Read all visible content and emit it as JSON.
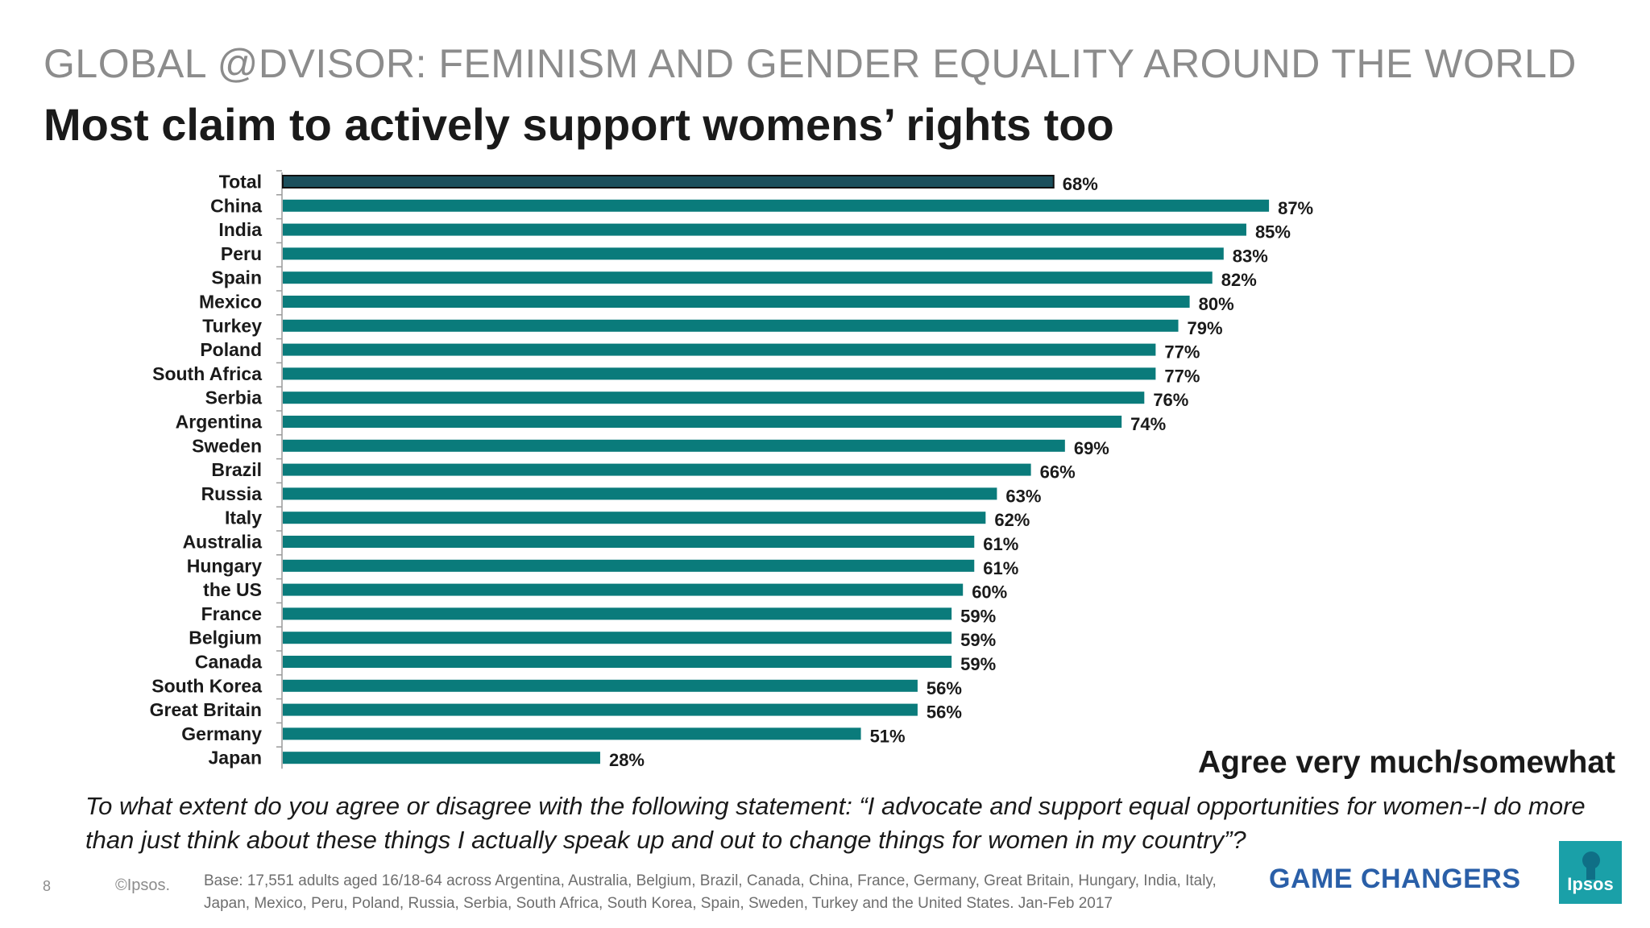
{
  "header": {
    "supertitle": "GLOBAL @DVISOR: FEMINISM AND GENDER EQUALITY AROUND THE WORLD",
    "title": "Most claim to actively support womens’ rights too"
  },
  "chart_data": {
    "type": "bar",
    "orientation": "horizontal",
    "categories": [
      "Total",
      "China",
      "India",
      "Peru",
      "Spain",
      "Mexico",
      "Turkey",
      "Poland",
      "South Africa",
      "Serbia",
      "Argentina",
      "Sweden",
      "Brazil",
      "Russia",
      "Italy",
      "Australia",
      "Hungary",
      "the US",
      "France",
      "Belgium",
      "Canada",
      "South Korea",
      "Great Britain",
      "Germany",
      "Japan"
    ],
    "values": [
      68,
      87,
      85,
      83,
      82,
      80,
      79,
      77,
      77,
      76,
      74,
      69,
      66,
      63,
      62,
      61,
      61,
      60,
      59,
      59,
      59,
      56,
      56,
      51,
      28
    ],
    "value_labels": [
      "68%",
      "87%",
      "85%",
      "83%",
      "82%",
      "80%",
      "79%",
      "77%",
      "77%",
      "76%",
      "74%",
      "69%",
      "66%",
      "63%",
      "62%",
      "61%",
      "61%",
      "60%",
      "59%",
      "59%",
      "59%",
      "56%",
      "56%",
      "51%",
      "28%"
    ],
    "legend": "Agree very much/somewhat",
    "xlim": [
      0,
      100
    ],
    "grid": false,
    "colors": {
      "bar": "#0a7b7b",
      "total_bar": "#1b4f5c",
      "total_outline": "#111111"
    }
  },
  "question": "To what extent do you agree or disagree with the following statement: “I advocate and support equal opportunities for women--I do more than just think about these things I actually speak up and out to change things for women in my country”?",
  "footer": {
    "page_number": "8",
    "copyright": "©Ipsos.",
    "base_note": "Base: 17,551  adults aged 16/18-64 across  Argentina, Australia, Belgium, Brazil, Canada, China, France, Germany, Great Britain, Hungary, India, Italy, Japan, Mexico, Peru, Poland, Russia, Serbia, South Africa, South Korea, Spain, Sweden, Turkey and the United States. Jan-Feb 2017",
    "tagline": "GAME CHANGERS",
    "logo_text": "Ipsos",
    "logo_color": "#1aa0a8"
  }
}
